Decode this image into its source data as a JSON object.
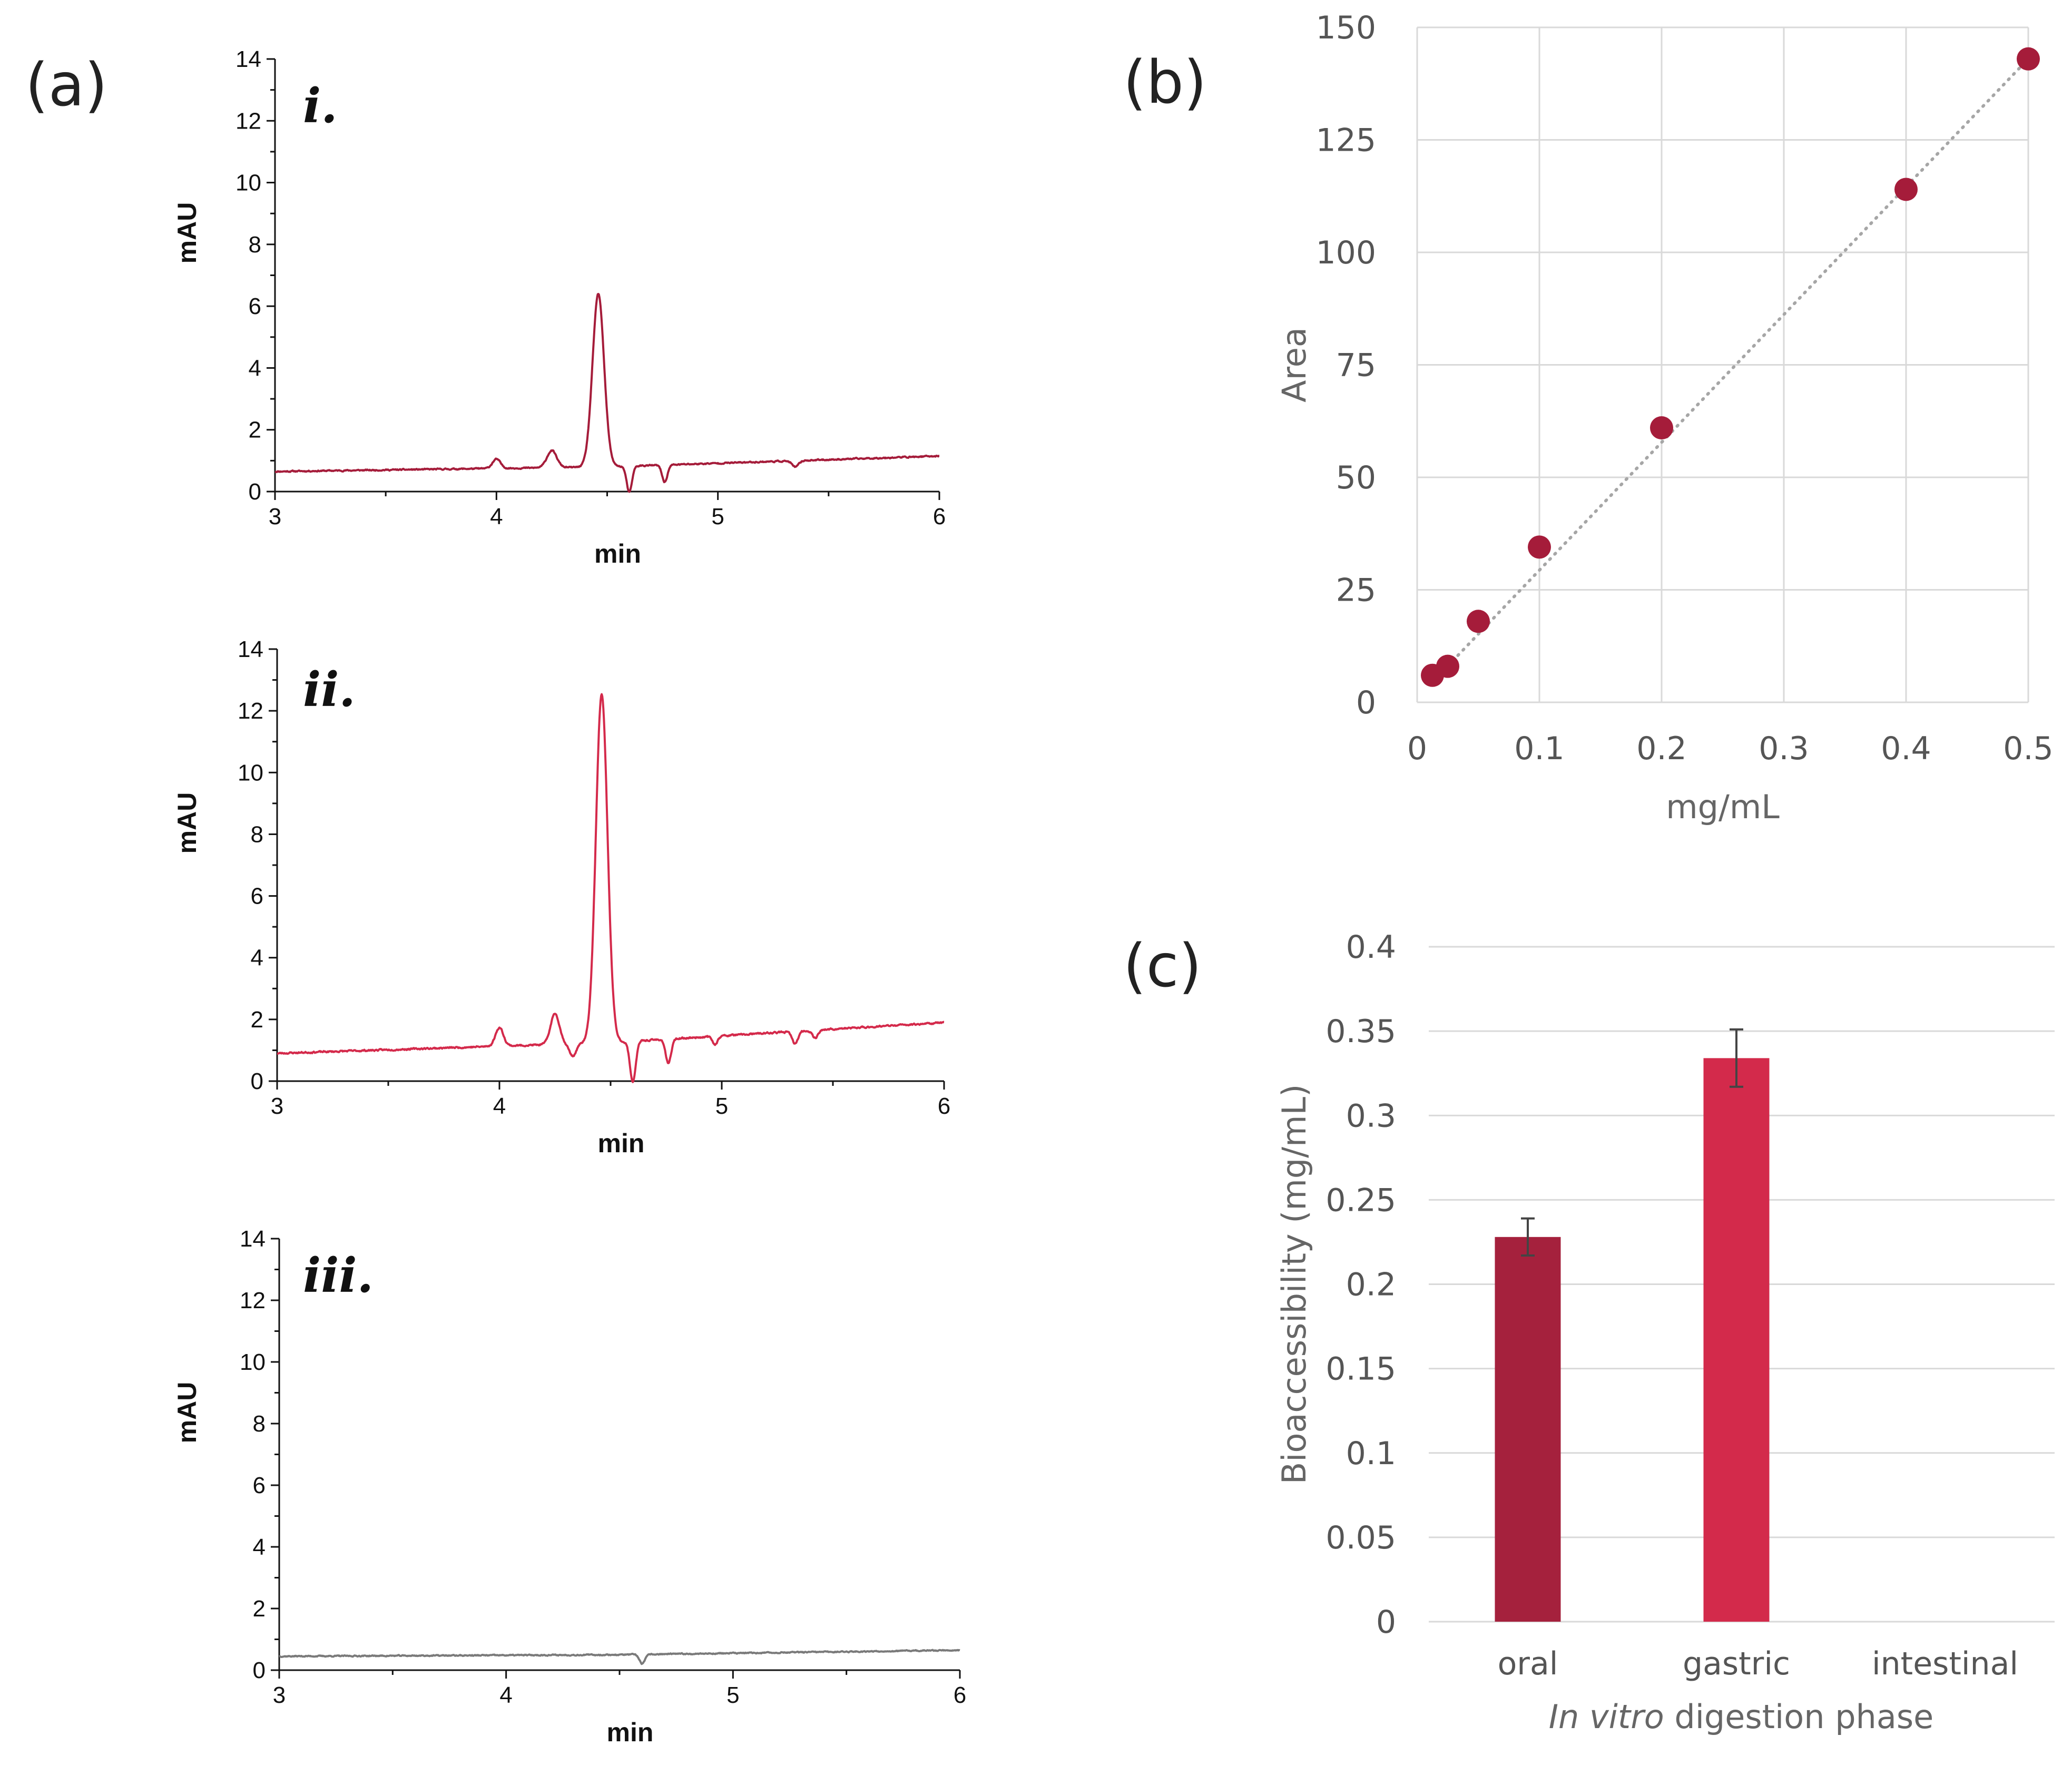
{
  "figure": {
    "panel_a_label": "(a)",
    "panel_b_label": "(b)",
    "panel_c_label": "(c)"
  },
  "colors": {
    "trace_i": "#a51c3a",
    "trace_ii": "#d42a4b",
    "trace_iii": "#7a7a7a",
    "marker": "#a51c3a",
    "bar_oral": "#a5213d",
    "bar_gastric": "#d32a4b",
    "grid": "#d9d9d9",
    "trendline": "#a6a6a6"
  },
  "chart_data": [
    {
      "id": "a-i",
      "type": "line",
      "roman": "i.",
      "xlabel": "min",
      "ylabel": "mAU",
      "xlim": [
        3,
        6
      ],
      "ylim": [
        0,
        14
      ],
      "xticks": [
        "3",
        "4",
        "5",
        "6"
      ],
      "yticks": [
        "0",
        "2",
        "4",
        "6",
        "8",
        "10",
        "12",
        "14"
      ],
      "baseline": [
        [
          3.0,
          0.65
        ],
        [
          4.5,
          0.8
        ],
        [
          6.0,
          1.15
        ]
      ],
      "peaks": [
        [
          4.0,
          0.3,
          0.018
        ],
        [
          4.25,
          0.55,
          0.022
        ],
        [
          4.46,
          5.6,
          0.026
        ],
        [
          4.6,
          -0.85,
          0.012
        ],
        [
          4.76,
          -0.55,
          0.012
        ],
        [
          5.35,
          -0.2,
          0.015
        ]
      ],
      "noise": 0.04,
      "seed": 11
    },
    {
      "id": "a-ii",
      "type": "line",
      "roman": "ii.",
      "xlabel": "min",
      "ylabel": "mAU",
      "xlim": [
        3,
        6
      ],
      "ylim": [
        0,
        14
      ],
      "xticks": [
        "3",
        "4",
        "5",
        "6"
      ],
      "yticks": [
        "0",
        "2",
        "4",
        "6",
        "8",
        "10",
        "12",
        "14"
      ],
      "baseline": [
        [
          3.0,
          0.9
        ],
        [
          4.5,
          1.25
        ],
        [
          6.0,
          1.9
        ]
      ],
      "peaks": [
        [
          4.0,
          0.6,
          0.018
        ],
        [
          4.25,
          1.0,
          0.02
        ],
        [
          4.33,
          -0.4,
          0.015
        ],
        [
          4.46,
          11.3,
          0.026
        ],
        [
          4.6,
          -1.3,
          0.013
        ],
        [
          4.76,
          -0.8,
          0.012
        ],
        [
          4.97,
          -0.25,
          0.012
        ],
        [
          5.33,
          -0.4,
          0.013
        ],
        [
          5.42,
          -0.25,
          0.012
        ]
      ],
      "noise": 0.05,
      "seed": 23
    },
    {
      "id": "a-iii",
      "type": "line",
      "roman": "iii.",
      "xlabel": "min",
      "ylabel": "mAU",
      "xlim": [
        3,
        6
      ],
      "ylim": [
        0,
        14
      ],
      "xticks": [
        "3",
        "4",
        "5",
        "6"
      ],
      "yticks": [
        "0",
        "2",
        "4",
        "6",
        "8",
        "10",
        "12",
        "14"
      ],
      "baseline": [
        [
          3.0,
          0.45
        ],
        [
          4.5,
          0.5
        ],
        [
          6.0,
          0.65
        ]
      ],
      "peaks": [
        [
          4.6,
          -0.3,
          0.012
        ]
      ],
      "noise": 0.035,
      "seed": 37
    },
    {
      "id": "b",
      "type": "scatter",
      "title": "",
      "xlabel": "mg/mL",
      "ylabel": "Area",
      "xlim": [
        0,
        0.5
      ],
      "ylim": [
        0,
        150
      ],
      "xticks": [
        "0",
        "0.1",
        "0.2",
        "0.3",
        "0.4",
        "0.5"
      ],
      "yticks": [
        "0",
        "25",
        "50",
        "75",
        "100",
        "125",
        "150"
      ],
      "x": [
        0.0125,
        0.025,
        0.05,
        0.1,
        0.2,
        0.4,
        0.5
      ],
      "y": [
        6,
        8,
        18,
        34.5,
        61,
        114,
        143
      ],
      "trendline": [
        [
          0.0125,
          4.5
        ],
        [
          0.5,
          143
        ]
      ],
      "grid": true
    },
    {
      "id": "c",
      "type": "bar",
      "title": "",
      "xlabel_italic": "In vitro",
      "xlabel_rest": " digestion phase",
      "ylabel": "Bioaccessibility (mg/mL)",
      "ylim": [
        0,
        0.4
      ],
      "yticks": [
        "0",
        "0.05",
        "0.1",
        "0.15",
        "0.2",
        "0.25",
        "0.3",
        "0.35",
        "0.4"
      ],
      "categories": [
        "oral",
        "gastric",
        "intestinal"
      ],
      "values": [
        0.228,
        0.334,
        0
      ],
      "errors": [
        0.011,
        0.017,
        0
      ],
      "grid": true
    }
  ]
}
